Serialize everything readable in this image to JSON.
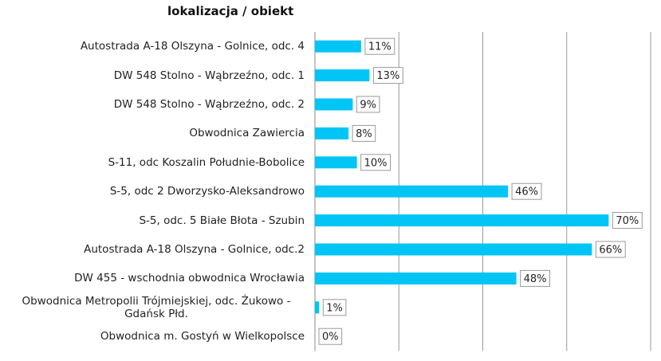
{
  "chart_data": {
    "type": "bar",
    "orientation": "horizontal",
    "y_axis_title": "lokalizacja / obiekt",
    "categories": [
      "Autostrada A-18 Olszyna - Golnice, odc. 4",
      "DW 548 Stolno - Wąbrzeźno, odc. 1",
      "DW 548 Stolno - Wąbrzeźno, odc. 2",
      "Obwodnica Zawiercia",
      "S-11, odc Koszalin Południe-Bobolice",
      "S-5, odc 2 Dworzysko-Aleksandrowo",
      "S-5, odc. 5 Białe Błota - Szubin",
      "Autostrada A-18 Olszyna - Golnice, odc.2",
      "DW 455 - wschodnia obwodnica Wrocławia",
      "Obwodnica Metropolii Trójmiejskiej, odc. Żukowo - Gdańsk Płd.",
      "Obwodnica m. Gostyń w Wielkopolsce"
    ],
    "values": [
      11,
      13,
      9,
      8,
      10,
      46,
      70,
      66,
      48,
      1,
      0
    ],
    "value_labels": [
      "11%",
      "13%",
      "9%",
      "8%",
      "10%",
      "46%",
      "70%",
      "66%",
      "48%",
      "1%",
      "0%"
    ],
    "color": "#00c5f5",
    "xlim": [
      0,
      80
    ],
    "xticks": [
      0,
      20,
      40,
      60,
      80
    ],
    "grid": true
  }
}
